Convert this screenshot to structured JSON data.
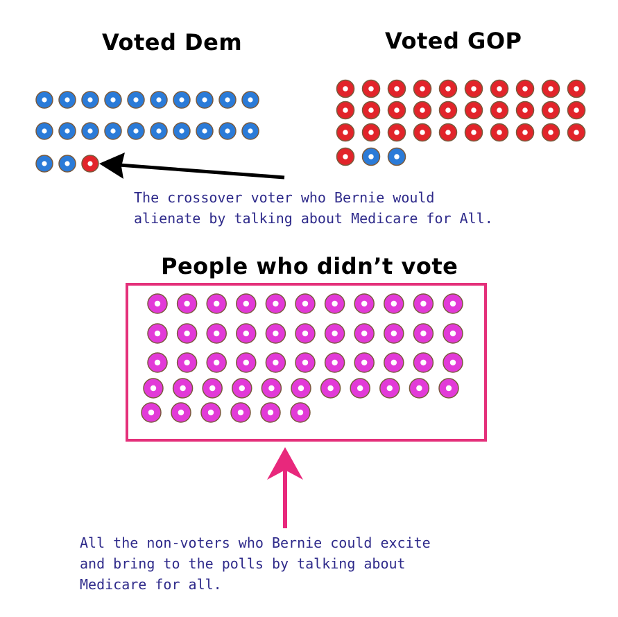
{
  "titles": {
    "voted_dem": "Voted Dem",
    "voted_gop": "Voted GOP",
    "non_voters": "People who didn’t vote"
  },
  "annotations": {
    "crossover": [
      "The crossover voter who Bernie would",
      "alienate by talking about Medicare for All."
    ],
    "non_voters": [
      "All the non-voters who Bernie could excite",
      "and bring to the polls by talking about",
      "Medicare for all."
    ]
  },
  "colors": {
    "dem": "#2b7bd8",
    "gop": "#e2242a",
    "non_voter": "#e23ad8",
    "donut_edge": "#7a5a3c",
    "arrow_black": "#000000",
    "arrow_pink": "#e8287c",
    "box_border": "#e4307a",
    "annotation_text": "#2e2a8a"
  },
  "groups": {
    "voted_dem": {
      "rows": [
        [
          "dem",
          "dem",
          "dem",
          "dem",
          "dem",
          "dem",
          "dem",
          "dem",
          "dem",
          "dem"
        ],
        [
          "dem",
          "dem",
          "dem",
          "dem",
          "dem",
          "dem",
          "dem",
          "dem",
          "dem",
          "dem"
        ],
        [
          "dem",
          "dem",
          "gop"
        ]
      ]
    },
    "voted_gop": {
      "rows": [
        [
          "gop",
          "gop",
          "gop",
          "gop",
          "gop",
          "gop",
          "gop",
          "gop",
          "gop",
          "gop"
        ],
        [
          "gop",
          "gop",
          "gop",
          "gop",
          "gop",
          "gop",
          "gop",
          "gop",
          "gop",
          "gop"
        ],
        [
          "gop",
          "gop",
          "gop",
          "gop",
          "gop",
          "gop",
          "gop",
          "gop",
          "gop",
          "gop"
        ],
        [
          "gop",
          "dem",
          "dem"
        ]
      ]
    },
    "non_voters": {
      "rows": [
        [
          11
        ],
        [
          11
        ],
        [
          11
        ],
        [
          11
        ],
        [
          6
        ]
      ]
    }
  }
}
